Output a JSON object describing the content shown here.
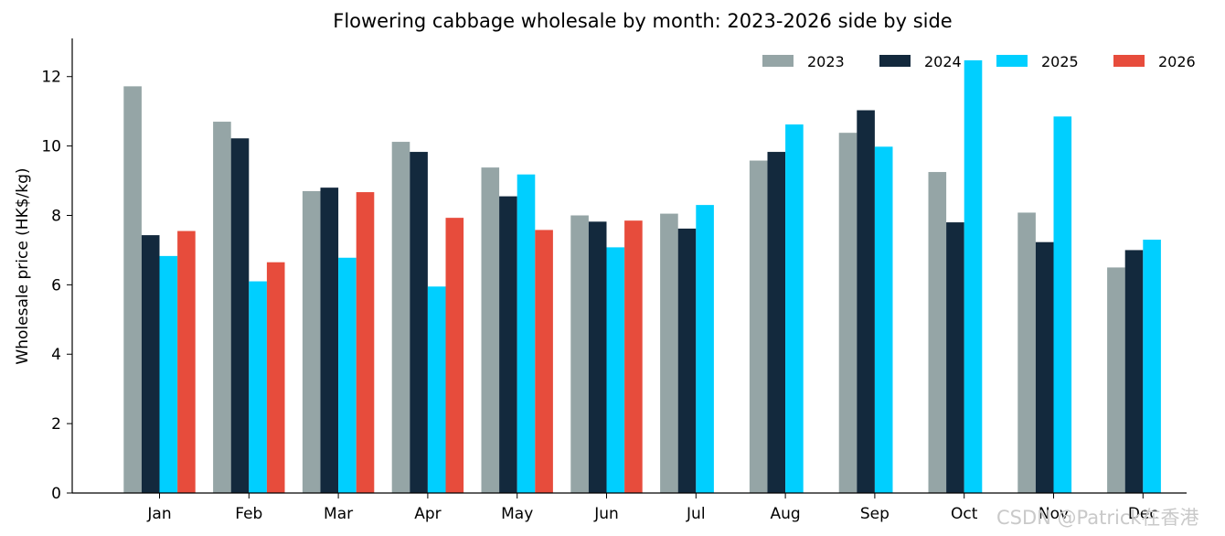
{
  "chart_data": {
    "type": "bar",
    "title": "Flowering cabbage wholesale by month: 2023-2026 side by side",
    "xlabel": "",
    "ylabel": "Wholesale price (HK$/kg)",
    "ylim": [
      0,
      13.1
    ],
    "yticks": [
      0,
      2,
      4,
      6,
      8,
      10,
      12
    ],
    "categories": [
      "Jan",
      "Feb",
      "Mar",
      "Apr",
      "May",
      "Jun",
      "Jul",
      "Aug",
      "Sep",
      "Oct",
      "Nov",
      "Dec"
    ],
    "legend_position": "top-right",
    "series": [
      {
        "name": "2023",
        "color": "#95a5a6",
        "values": [
          11.72,
          10.7,
          8.7,
          10.12,
          9.38,
          8.0,
          8.05,
          9.58,
          10.38,
          9.25,
          8.08,
          6.5
        ]
      },
      {
        "name": "2024",
        "color": "#13293d",
        "values": [
          7.43,
          10.22,
          8.8,
          9.83,
          8.55,
          7.82,
          7.62,
          9.83,
          11.03,
          7.8,
          7.23,
          7.0
        ]
      },
      {
        "name": "2025",
        "color": "#00cfff",
        "values": [
          6.83,
          6.1,
          6.78,
          5.95,
          9.18,
          7.08,
          8.3,
          10.62,
          9.98,
          12.47,
          10.85,
          7.3
        ]
      },
      {
        "name": "2026",
        "color": "#e74c3c",
        "values": [
          7.55,
          6.65,
          8.67,
          7.93,
          7.58,
          7.85,
          null,
          null,
          null,
          null,
          null,
          null
        ]
      }
    ]
  },
  "watermark": "CSDN @Patrick在香港"
}
